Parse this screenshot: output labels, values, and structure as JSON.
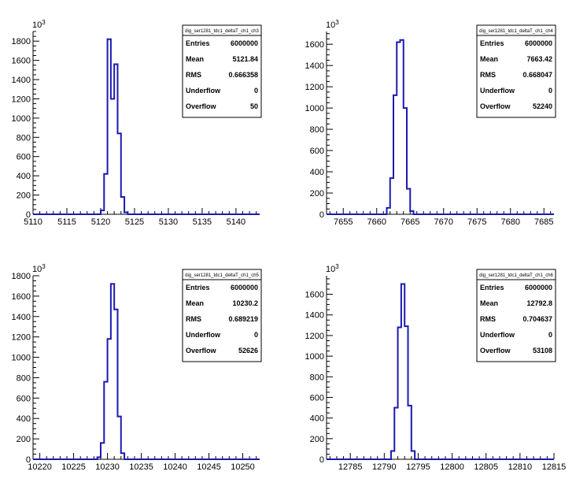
{
  "colors": {
    "histogram": "#1a1ab0",
    "background": "#ffffff"
  },
  "chart_data": [
    {
      "type": "bar",
      "title": "dig_ser1281_tdc1_deltaT_ch1_ch3",
      "y_multiplier": "10",
      "y_exponent": "3",
      "xlim": [
        5110,
        5143.5
      ],
      "ylim": [
        0,
        1900
      ],
      "x_ticks": [
        "5110",
        "5115",
        "5120",
        "5125",
        "5130",
        "5135",
        "5140"
      ],
      "y_ticks": [
        "0",
        "200",
        "400",
        "600",
        "800",
        "1000",
        "1200",
        "1400",
        "1600",
        "1800"
      ],
      "bins": [
        {
          "x": 5119.5,
          "y": 0
        },
        {
          "x": 5120.0,
          "y": 40
        },
        {
          "x": 5120.5,
          "y": 420
        },
        {
          "x": 5121.0,
          "y": 1820
        },
        {
          "x": 5121.5,
          "y": 1200
        },
        {
          "x": 5122.0,
          "y": 1560
        },
        {
          "x": 5122.5,
          "y": 840
        },
        {
          "x": 5123.0,
          "y": 180
        },
        {
          "x": 5123.5,
          "y": 20
        },
        {
          "x": 5124.0,
          "y": 0
        }
      ],
      "stats": {
        "title": "dig_ser1281_tdc1_deltaT_ch1_ch3",
        "rows": [
          {
            "label": "Entries",
            "value": "6000000"
          },
          {
            "label": "Mean",
            "value": "5121.84"
          },
          {
            "label": "RMS",
            "value": "0.666358"
          },
          {
            "label": "Underflow",
            "value": "0"
          },
          {
            "label": "Overflow",
            "value": "50"
          }
        ]
      }
    },
    {
      "type": "bar",
      "title": "dig_ser1281_tdc1_deltaT_ch1_ch4",
      "y_multiplier": "10",
      "y_exponent": "3",
      "xlim": [
        7652.5,
        7686.5
      ],
      "ylim": [
        0,
        1720
      ],
      "x_ticks": [
        "7655",
        "7660",
        "7665",
        "7670",
        "7675",
        "7680",
        "7685"
      ],
      "y_ticks": [
        "0",
        "200",
        "400",
        "600",
        "800",
        "1000",
        "1200",
        "1400",
        "1600"
      ],
      "bins": [
        {
          "x": 7661.0,
          "y": 0
        },
        {
          "x": 7661.5,
          "y": 60
        },
        {
          "x": 7662.0,
          "y": 340
        },
        {
          "x": 7662.5,
          "y": 1120
        },
        {
          "x": 7663.0,
          "y": 1620
        },
        {
          "x": 7663.5,
          "y": 1640
        },
        {
          "x": 7664.0,
          "y": 1000
        },
        {
          "x": 7664.5,
          "y": 240
        },
        {
          "x": 7665.0,
          "y": 30
        },
        {
          "x": 7665.5,
          "y": 0
        }
      ],
      "stats": {
        "title": "dig_ser1281_tdc1_deltaT_ch1_ch4",
        "rows": [
          {
            "label": "Entries",
            "value": "6000000"
          },
          {
            "label": "Mean",
            "value": "7663.42"
          },
          {
            "label": "RMS",
            "value": "0.668047"
          },
          {
            "label": "Underflow",
            "value": "0"
          },
          {
            "label": "Overflow",
            "value": "52240"
          }
        ]
      }
    },
    {
      "type": "bar",
      "title": "dig_ser1281_tdc1_deltaT_ch1_ch5",
      "y_multiplier": "10",
      "y_exponent": "3",
      "xlim": [
        10219,
        10252.5
      ],
      "ylim": [
        0,
        1800
      ],
      "x_ticks": [
        "10220",
        "10225",
        "10230",
        "10235",
        "10240",
        "10245",
        "10250"
      ],
      "y_ticks": [
        "0",
        "200",
        "400",
        "600",
        "800",
        "1000",
        "1200",
        "1400",
        "1600",
        "1800"
      ],
      "bins": [
        {
          "x": 10228.0,
          "y": 0
        },
        {
          "x": 10228.5,
          "y": 20
        },
        {
          "x": 10229.0,
          "y": 160
        },
        {
          "x": 10229.5,
          "y": 760
        },
        {
          "x": 10230.0,
          "y": 1180
        },
        {
          "x": 10230.5,
          "y": 1720
        },
        {
          "x": 10231.0,
          "y": 1470
        },
        {
          "x": 10231.5,
          "y": 420
        },
        {
          "x": 10232.0,
          "y": 60
        },
        {
          "x": 10232.5,
          "y": 0
        }
      ],
      "stats": {
        "title": "dig_ser1281_tdc1_deltaT_ch1_ch5",
        "rows": [
          {
            "label": "Entries",
            "value": "6000000"
          },
          {
            "label": "Mean",
            "value": "10230.2"
          },
          {
            "label": "RMS",
            "value": "0.689219"
          },
          {
            "label": "Underflow",
            "value": "0"
          },
          {
            "label": "Overflow",
            "value": "52626"
          }
        ]
      }
    },
    {
      "type": "bar",
      "title": "dig_ser1281_tdc1_deltaT_ch1_ch6",
      "y_multiplier": "10",
      "y_exponent": "3",
      "xlim": [
        12781.5,
        12815
      ],
      "ylim": [
        0,
        1780
      ],
      "x_ticks": [
        "12785",
        "12790",
        "12795",
        "12800",
        "12805",
        "12810",
        "12815"
      ],
      "y_ticks": [
        "0",
        "200",
        "400",
        "600",
        "800",
        "1000",
        "1200",
        "1400",
        "1600"
      ],
      "bins": [
        {
          "x": 12790.5,
          "y": 0
        },
        {
          "x": 12791.0,
          "y": 80
        },
        {
          "x": 12791.5,
          "y": 500
        },
        {
          "x": 12792.0,
          "y": 1280
        },
        {
          "x": 12792.5,
          "y": 1700
        },
        {
          "x": 12793.0,
          "y": 1290
        },
        {
          "x": 12793.5,
          "y": 520
        },
        {
          "x": 12794.0,
          "y": 80
        },
        {
          "x": 12794.5,
          "y": 0
        }
      ],
      "stats": {
        "title": "dig_ser1281_tdc1_deltaT_ch1_ch6",
        "rows": [
          {
            "label": "Entries",
            "value": "6000000"
          },
          {
            "label": "Mean",
            "value": "12792.8"
          },
          {
            "label": "RMS",
            "value": "0.704637"
          },
          {
            "label": "Underflow",
            "value": "0"
          },
          {
            "label": "Overflow",
            "value": "53108"
          }
        ]
      }
    }
  ]
}
